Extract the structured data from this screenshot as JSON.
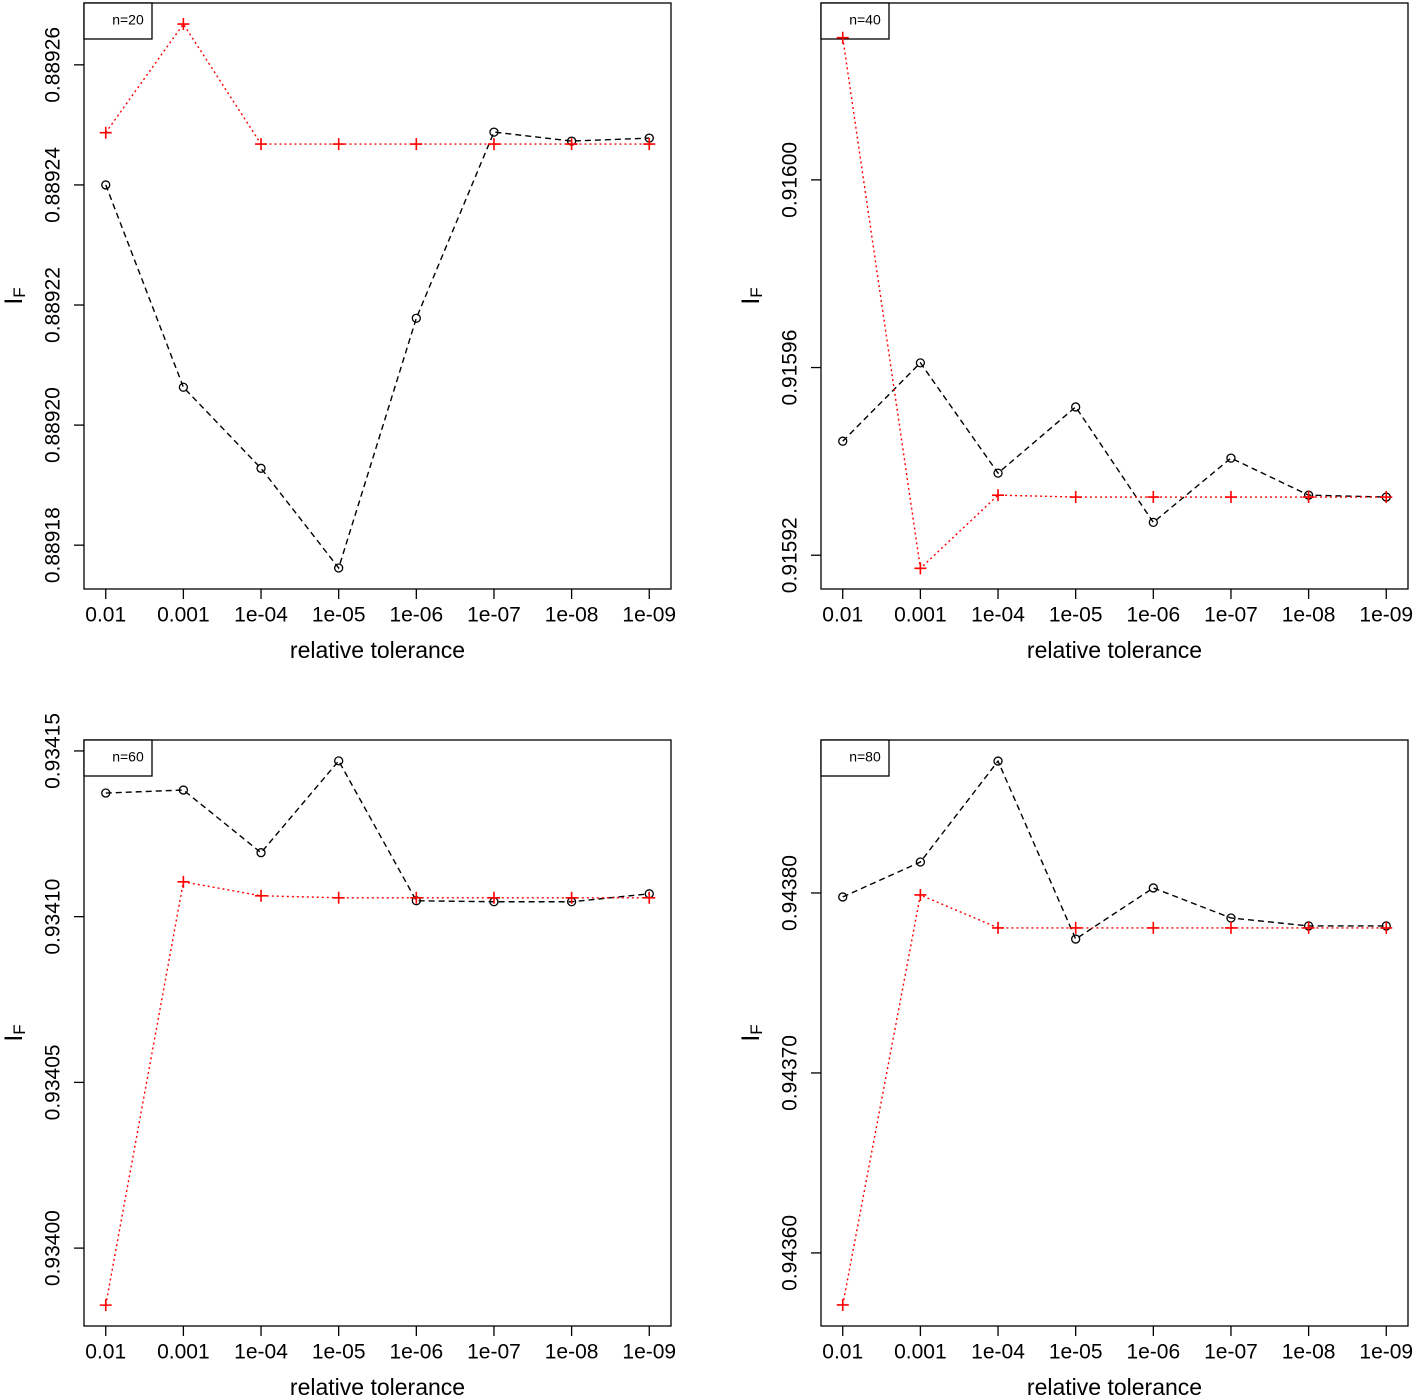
{
  "chart_data": [
    {
      "type": "line",
      "annotation": "n=20",
      "xlabel": "relative tolerance",
      "ylabel": "I",
      "ylabel_sub": "F",
      "categories": [
        "0.01",
        "0.001",
        "1e-04",
        "1e-05",
        "1e-06",
        "1e-07",
        "1e-08",
        "1e-09"
      ],
      "ylim": [
        0.8891727,
        0.8892703
      ],
      "yticks": [
        0.88918,
        {
          "value": 0.8892,
          "label": "0.88920"
        },
        0.88922,
        0.88924,
        0.88926
      ],
      "series": [
        {
          "color": "#000000",
          "line": "dashed",
          "marker": "circle",
          "values": [
            0.88924,
            0.8892063,
            0.8891928,
            0.8891762,
            0.8892178,
            0.8892488,
            0.8892473,
            0.8892478
          ]
        },
        {
          "color": "#ff0000",
          "line": "dotted",
          "marker": "plus",
          "values": [
            0.8892487,
            0.8892668,
            0.8892468,
            0.8892468,
            0.8892468,
            0.8892468,
            0.8892468,
            0.8892468
          ]
        }
      ]
    },
    {
      "type": "line",
      "annotation": "n=40",
      "xlabel": "relative tolerance",
      "ylabel": "I",
      "ylabel_sub": "F",
      "categories": [
        "0.01",
        "0.001",
        "1e-04",
        "1e-05",
        "1e-06",
        "1e-07",
        "1e-08",
        "1e-09"
      ],
      "ylim": [
        0.9159128,
        0.9160377
      ],
      "yticks": [
        0.91592,
        0.91596,
        {
          "value": 0.916,
          "label": "0.91600"
        }
      ],
      "series": [
        {
          "color": "#000000",
          "line": "dashed",
          "marker": "circle",
          "values": [
            0.9159443,
            0.915961,
            0.9159375,
            0.9159516,
            0.915927,
            0.9159407,
            0.9159328,
            0.9159324
          ]
        },
        {
          "color": "#ff0000",
          "line": "dotted",
          "marker": "plus",
          "values": [
            0.9160303,
            0.9159172,
            0.9159328,
            0.9159324,
            0.9159324,
            0.9159324,
            0.9159324,
            0.9159324
          ]
        }
      ]
    },
    {
      "type": "line",
      "annotation": "n=60",
      "xlabel": "relative tolerance",
      "ylabel": "I",
      "ylabel_sub": "F",
      "categories": [
        "0.01",
        "0.001",
        "1e-04",
        "1e-05",
        "1e-06",
        "1e-07",
        "1e-08",
        "1e-09"
      ],
      "ylim": [
        0.9339765,
        0.9341533
      ],
      "yticks": [
        {
          "value": 0.934,
          "label": "0.93400"
        },
        0.93405,
        {
          "value": 0.9341,
          "label": "0.93410"
        },
        0.93415
      ],
      "series": [
        {
          "color": "#000000",
          "line": "dashed",
          "marker": "circle",
          "values": [
            0.9341373,
            0.9341382,
            0.9341193,
            0.934147,
            0.9341048,
            0.9341045,
            0.9341045,
            0.9341069
          ]
        },
        {
          "color": "#ff0000",
          "line": "dotted",
          "marker": "plus",
          "values": [
            0.9339828,
            0.9341105,
            0.9341063,
            0.9341057,
            0.9341057,
            0.9341057,
            0.9341057,
            0.9341057
          ]
        }
      ]
    },
    {
      "type": "line",
      "annotation": "n=80",
      "xlabel": "relative tolerance",
      "ylabel": "I",
      "ylabel_sub": "F",
      "categories": [
        "0.01",
        "0.001",
        "1e-04",
        "1e-05",
        "1e-06",
        "1e-07",
        "1e-08",
        "1e-09"
      ],
      "ylim": [
        0.9435594,
        0.943885
      ],
      "yticks": [
        {
          "value": 0.9436,
          "label": "0.94360"
        },
        {
          "value": 0.9437,
          "label": "0.94370"
        },
        {
          "value": 0.9438,
          "label": "0.94380"
        }
      ],
      "series": [
        {
          "color": "#000000",
          "line": "dashed",
          "marker": "circle",
          "values": [
            0.9437978,
            0.9438172,
            0.9438733,
            0.9437744,
            0.9438028,
            0.9437861,
            0.9437817,
            0.9437817
          ]
        },
        {
          "color": "#ff0000",
          "line": "dotted",
          "marker": "plus",
          "values": [
            0.9435711,
            0.9437989,
            0.9437806,
            0.9437806,
            0.9437806,
            0.9437806,
            0.9437806,
            0.9437806
          ]
        }
      ]
    }
  ]
}
